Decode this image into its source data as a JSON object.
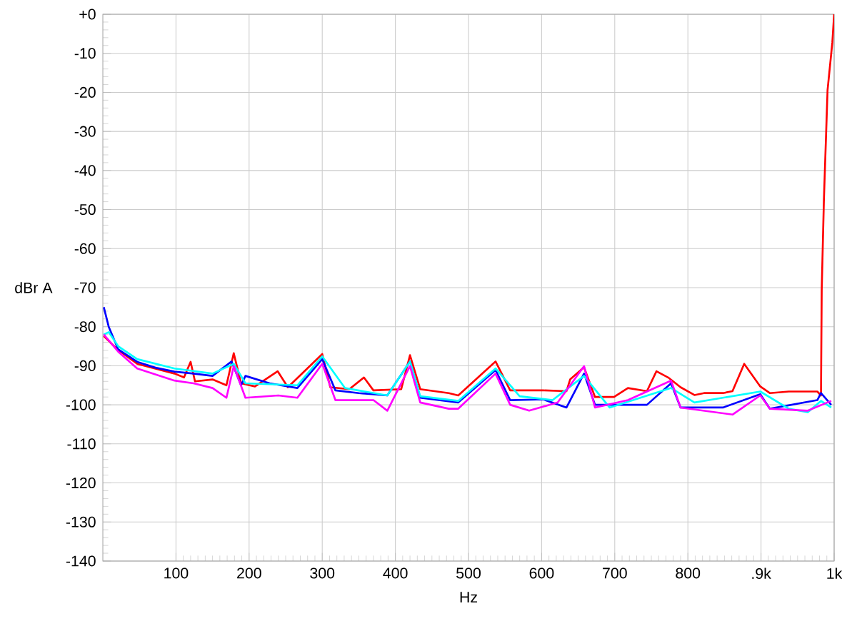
{
  "chart_data": {
    "type": "line",
    "xlabel": "Hz",
    "ylabel": "dBr A",
    "xlim": [
      0,
      1000
    ],
    "ylim": [
      -140,
      0
    ],
    "xticks": [
      100,
      200,
      300,
      400,
      500,
      600,
      700,
      800,
      {
        "value": 900,
        "label": ".9k"
      },
      {
        "value": 1000,
        "label": "1k"
      }
    ],
    "yticks": [
      -140,
      -130,
      -120,
      -110,
      -100,
      -90,
      -80,
      -70,
      -60,
      -50,
      -40,
      -30,
      -20,
      -10,
      {
        "value": 0,
        "label": "+0"
      }
    ],
    "grid": true,
    "line_style": "solid",
    "series": [
      {
        "color": "#ff0000",
        "x": [
          1.3,
          21,
          47,
          98,
          111,
          120,
          126,
          150,
          169,
          179,
          189,
          208,
          239,
          253,
          300,
          311,
          337,
          357,
          370,
          408,
          420,
          434,
          473,
          486,
          537,
          557,
          602,
          634,
          639,
          658,
          673,
          699,
          718,
          744,
          757,
          773,
          790,
          809,
          822,
          848,
          861,
          877,
          899,
          912,
          938,
          964,
          977,
          982,
          983,
          986,
          991,
          997.5,
          1000
        ],
        "values": [
          -82.4,
          -86,
          -89.5,
          -92,
          -93,
          -89,
          -94,
          -93.5,
          -95,
          -86.8,
          -94.5,
          -95.3,
          -91.4,
          -95.5,
          -87,
          -95.5,
          -96,
          -93,
          -96.3,
          -96,
          -87.3,
          -96,
          -97,
          -97.6,
          -88.9,
          -96.3,
          -96.3,
          -96.5,
          -93.5,
          -90.4,
          -98,
          -98,
          -95.7,
          -96.5,
          -91.4,
          -93,
          -95.5,
          -97.5,
          -97,
          -97,
          -96.5,
          -89.5,
          -95.3,
          -97,
          -96.6,
          -96.6,
          -96.6,
          -97.6,
          -70.5,
          -47.5,
          -19.4,
          -7.3,
          0
        ]
      },
      {
        "color": "#0000ff",
        "x": [
          1.3,
          8,
          21,
          47,
          72,
          98,
          124,
          150,
          176,
          189,
          195,
          228,
          266,
          300,
          318,
          350,
          389,
          420,
          434,
          486,
          537,
          557,
          602,
          634,
          658,
          673,
          744,
          777,
          790,
          848,
          899,
          912,
          977,
          982,
          996
        ],
        "values": [
          -75,
          -80,
          -85.8,
          -89,
          -90.5,
          -91.5,
          -92,
          -92.6,
          -88.9,
          -95,
          -92.6,
          -94.5,
          -95.7,
          -88.3,
          -96.3,
          -97,
          -97.6,
          -88.9,
          -98.2,
          -99.4,
          -91.1,
          -98.8,
          -98.6,
          -100.7,
          -92,
          -100,
          -100,
          -94.5,
          -100.7,
          -100.7,
          -97.3,
          -101,
          -98.8,
          -97,
          -100
        ]
      },
      {
        "color": "#00ffff",
        "x": [
          1.3,
          8,
          21,
          47,
          98,
          150,
          179,
          195,
          266,
          300,
          331,
          389,
          420,
          434,
          486,
          537,
          570,
          615,
          658,
          693,
          777,
          809,
          899,
          938,
          964,
          982,
          996
        ],
        "values": [
          -82,
          -81.4,
          -85,
          -88.3,
          -90.7,
          -92,
          -89.5,
          -94.5,
          -95,
          -87.6,
          -95.7,
          -97.6,
          -88.9,
          -97.8,
          -99,
          -90.7,
          -97.8,
          -98.8,
          -92.6,
          -100.7,
          -95.7,
          -99.4,
          -96.6,
          -101,
          -101.9,
          -99,
          -100.7
        ]
      },
      {
        "color": "#ff00ff",
        "x": [
          1.3,
          21,
          47,
          98,
          124,
          150,
          169,
          179,
          195,
          240,
          266,
          300,
          318,
          370,
          389,
          420,
          434,
          473,
          486,
          537,
          557,
          583,
          622,
          658,
          673,
          718,
          777,
          790,
          861,
          899,
          912,
          964,
          996
        ],
        "values": [
          -82,
          -86.4,
          -90.7,
          -93.8,
          -94.5,
          -95.7,
          -98.2,
          -90.1,
          -98.2,
          -97.6,
          -98.2,
          -89.5,
          -98.8,
          -98.8,
          -101.5,
          -90.1,
          -99.4,
          -101,
          -101,
          -92,
          -100,
          -101.5,
          -99.4,
          -90.1,
          -100.7,
          -98.8,
          -93.8,
          -100.7,
          -102.5,
          -97.6,
          -101,
          -101.5,
          -99
        ]
      }
    ]
  }
}
